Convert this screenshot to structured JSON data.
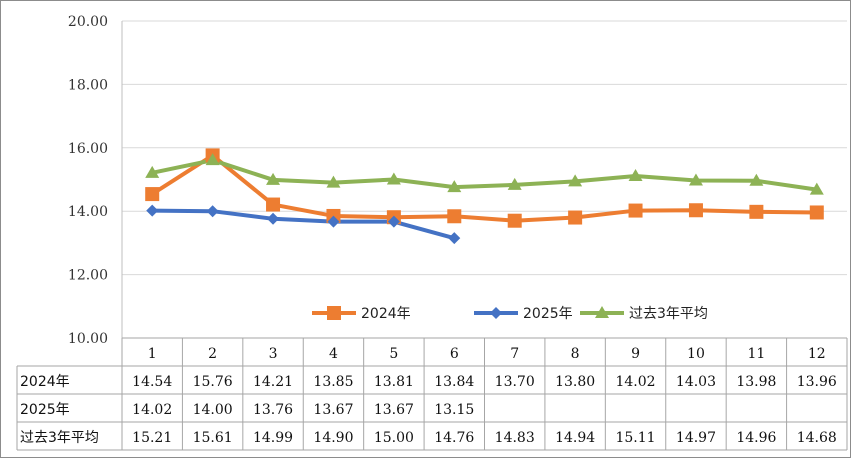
{
  "chart_data": {
    "type": "line",
    "categories": [
      "1",
      "2",
      "3",
      "4",
      "5",
      "6",
      "7",
      "8",
      "9",
      "10",
      "11",
      "12"
    ],
    "ylim": [
      10,
      20
    ],
    "yticks": [
      "20.00",
      "18.00",
      "16.00",
      "14.00",
      "12.00",
      "10.00"
    ],
    "ytick_values": [
      20,
      18,
      16,
      14,
      12,
      10
    ],
    "grid": true,
    "legend_position": "bottom-inside",
    "series": [
      {
        "name": "2024年",
        "color": "#ED7D31",
        "marker": "square",
        "values": [
          14.54,
          15.76,
          14.21,
          13.85,
          13.81,
          13.84,
          13.7,
          13.8,
          14.02,
          14.03,
          13.98,
          13.96
        ],
        "labels": [
          "14.54",
          "15.76",
          "14.21",
          "13.85",
          "13.81",
          "13.84",
          "13.70",
          "13.80",
          "14.02",
          "14.03",
          "13.98",
          "13.96"
        ]
      },
      {
        "name": "2025年",
        "color": "#4472C4",
        "marker": "diamond",
        "values": [
          14.02,
          14.0,
          13.76,
          13.67,
          13.67,
          13.15,
          null,
          null,
          null,
          null,
          null,
          null
        ],
        "labels": [
          "14.02",
          "14.00",
          "13.76",
          "13.67",
          "13.67",
          "13.15",
          "",
          "",
          "",
          "",
          "",
          ""
        ]
      },
      {
        "name": "过去3年平均",
        "color": "#8DB255",
        "marker": "triangle",
        "values": [
          15.21,
          15.61,
          14.99,
          14.9,
          15.0,
          14.76,
          14.83,
          14.94,
          15.11,
          14.97,
          14.96,
          14.68
        ],
        "labels": [
          "15.21",
          "15.61",
          "14.99",
          "14.90",
          "15.00",
          "14.76",
          "14.83",
          "14.94",
          "15.11",
          "14.97",
          "14.96",
          "14.68"
        ]
      }
    ]
  }
}
